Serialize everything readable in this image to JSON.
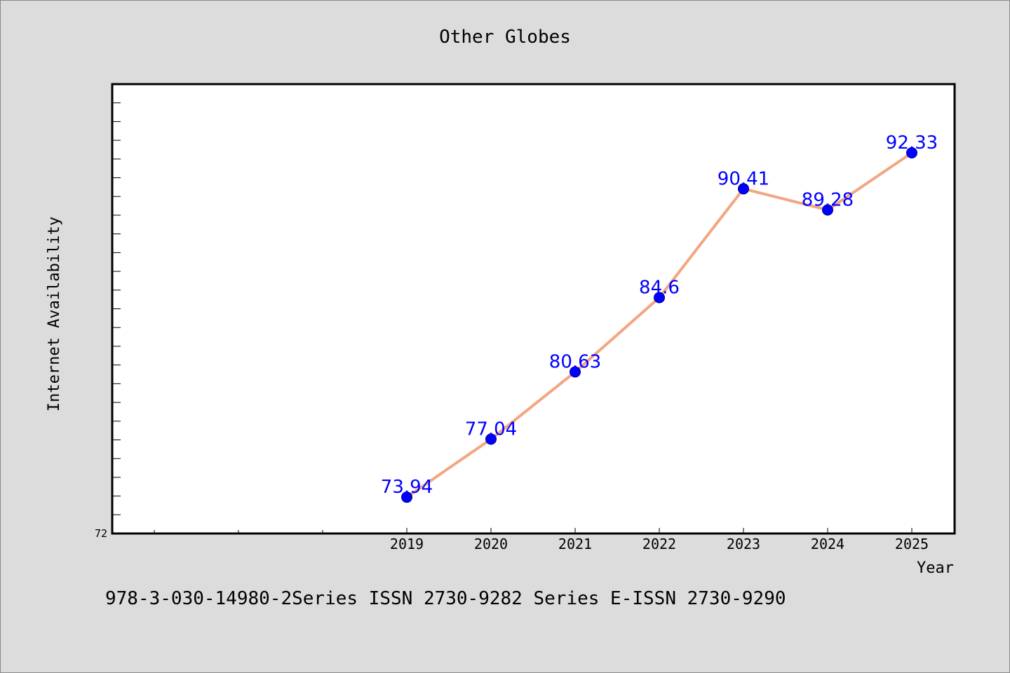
{
  "chart_data": {
    "type": "line",
    "title": "Other Globes",
    "xlabel": "Year",
    "ylabel": "Internet Availability",
    "x": [
      "2019",
      "2020",
      "2021",
      "2022",
      "2023",
      "2024",
      "2025"
    ],
    "series": [
      {
        "values": [
          73.94,
          77.04,
          80.63,
          84.6,
          90.41,
          89.28,
          92.33
        ],
        "labels": [
          "73.94",
          "77.04",
          "80.63",
          "84.6",
          "90.41",
          "89.28",
          "92.33"
        ],
        "line_color": "#f4a582",
        "marker_color": "#0000ff",
        "label_color": "#0000ff"
      }
    ],
    "ylim": [
      72,
      96
    ],
    "ytick_labels": [
      "72"
    ],
    "grid": false
  },
  "footer": {
    "text": "978-3-030-14980-2Series ISSN 2730-9282 Series E-ISSN 2730-9290"
  },
  "colors": {
    "background": "#dcdcdc",
    "plot_background": "#ffffff",
    "axes": "#000000"
  }
}
